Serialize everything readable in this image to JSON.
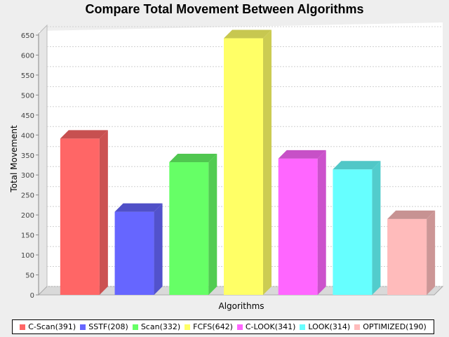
{
  "chart_data": {
    "type": "bar",
    "title": "Compare Total Movement Between Algorithms",
    "xlabel": "Algorithms",
    "ylabel": "Total Movement",
    "ylim": [
      0,
      650
    ],
    "yticks": [
      0,
      50,
      100,
      150,
      200,
      250,
      300,
      350,
      400,
      450,
      500,
      550,
      600,
      650
    ],
    "grid": true,
    "legend_position": "bottom",
    "series": [
      {
        "name": "C-Scan(391)",
        "value": 391,
        "color": "#ff6666"
      },
      {
        "name": "SSTF(208)",
        "value": 208,
        "color": "#6666ff"
      },
      {
        "name": "Scan(332)",
        "value": 332,
        "color": "#66ff66"
      },
      {
        "name": "FCFS(642)",
        "value": 642,
        "color": "#ffff66"
      },
      {
        "name": "C-LOOK(341)",
        "value": 341,
        "color": "#ff66ff"
      },
      {
        "name": "LOOK(314)",
        "value": 314,
        "color": "#66ffff"
      },
      {
        "name": "OPTIMIZED(190)",
        "value": 190,
        "color": "#ffbbbb"
      }
    ]
  }
}
